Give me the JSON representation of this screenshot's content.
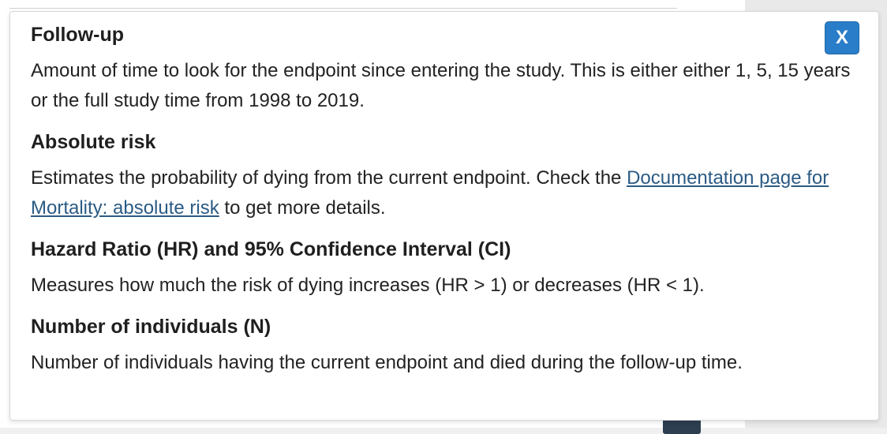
{
  "modal": {
    "close_label": "X",
    "sections": {
      "followup": {
        "heading": "Follow-up",
        "body": "Amount of time to look for the endpoint since entering the study. This is either either 1, 5, 15 years or the full study time from 1998 to 2019."
      },
      "absolute_risk": {
        "heading": "Absolute risk",
        "body_before": "Estimates the probability of dying from the current endpoint. Check the ",
        "link_text": "Documentation page for Mortality: absolute risk",
        "body_after": " to get more details."
      },
      "hazard_ratio": {
        "heading": "Hazard Ratio (HR) and 95% Confidence Interval (CI)",
        "body": "Measures how much the risk of dying increases (HR > 1) or decreases (HR < 1)."
      },
      "num_individuals": {
        "heading": "Number of individuals (N)",
        "body": "Number of individuals having the current endpoint and died during the follow-up time."
      }
    }
  },
  "colors": {
    "close_button": "#2a7dc9",
    "link": "#2b5b84"
  }
}
